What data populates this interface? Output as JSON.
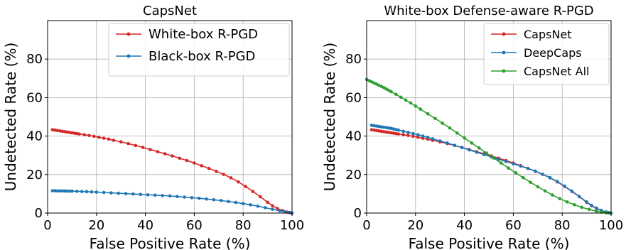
{
  "chart_data": [
    {
      "type": "line",
      "title": "CapsNet",
      "xlabel": "False Positive Rate (%)",
      "ylabel": "Undetected Rate (%)",
      "xlim": [
        0,
        100
      ],
      "ylim": [
        0,
        100
      ],
      "xticks": [
        "0",
        "20",
        "40",
        "60",
        "80",
        "100"
      ],
      "yticks": [
        "0",
        "20",
        "40",
        "60",
        "80"
      ],
      "grid": true,
      "legend_position": "top-right",
      "series": [
        {
          "name": "White-box R-PGD",
          "color": "#d62728",
          "x": [
            2,
            3,
            4,
            5,
            6,
            7,
            8,
            9,
            10,
            11,
            12,
            13,
            15,
            17,
            19,
            21,
            23,
            25,
            27,
            30,
            33,
            36,
            39,
            42,
            45,
            48,
            51,
            54,
            57,
            60,
            63,
            66,
            69,
            72,
            75,
            78,
            81,
            84,
            87,
            90,
            92,
            94,
            96,
            98,
            99,
            100
          ],
          "y": [
            43.3,
            43.1,
            42.9,
            42.7,
            42.5,
            42.3,
            42.1,
            41.9,
            41.7,
            41.5,
            41.3,
            41.1,
            40.7,
            40.3,
            39.9,
            39.4,
            38.9,
            38.4,
            37.8,
            37.0,
            36.1,
            35.1,
            34.1,
            33.0,
            31.9,
            30.8,
            29.7,
            28.5,
            27.3,
            26.0,
            24.6,
            23.2,
            21.7,
            20.1,
            18.3,
            16.2,
            13.8,
            11.2,
            8.5,
            5.6,
            3.8,
            2.4,
            1.3,
            0.5,
            0.2,
            0.0
          ]
        },
        {
          "name": "Black-box R-PGD",
          "color": "#1f77b4",
          "x": [
            2,
            3,
            4,
            5,
            6,
            7,
            8,
            9,
            10,
            12,
            14,
            16,
            18,
            20,
            23,
            26,
            29,
            32,
            35,
            38,
            41,
            44,
            47,
            50,
            53,
            56,
            59,
            62,
            65,
            68,
            71,
            74,
            77,
            80,
            83,
            86,
            89,
            92,
            95,
            97,
            99,
            100
          ],
          "y": [
            11.6,
            11.6,
            11.5,
            11.5,
            11.5,
            11.5,
            11.4,
            11.4,
            11.4,
            11.3,
            11.2,
            11.1,
            11.0,
            10.9,
            10.7,
            10.5,
            10.3,
            10.1,
            9.9,
            9.7,
            9.5,
            9.3,
            9.1,
            8.9,
            8.6,
            8.3,
            8.0,
            7.7,
            7.3,
            6.9,
            6.5,
            6.0,
            5.5,
            4.9,
            4.3,
            3.6,
            2.8,
            2.0,
            1.2,
            0.7,
            0.3,
            0.0
          ]
        }
      ]
    },
    {
      "type": "line",
      "title": "White-box Defense-aware R-PGD",
      "xlabel": "False Positive Rate (%)",
      "ylabel": "Undetected Rate (%)",
      "xlim": [
        0,
        100
      ],
      "ylim": [
        0,
        100
      ],
      "xticks": [
        "0",
        "20",
        "40",
        "60",
        "80",
        "100"
      ],
      "yticks": [
        "0",
        "20",
        "40",
        "60",
        "80"
      ],
      "grid": true,
      "legend_position": "top-right",
      "series": [
        {
          "name": "CapsNet",
          "color": "#d62728",
          "x": [
            2,
            3,
            4,
            5,
            6,
            7,
            8,
            9,
            10,
            11,
            12,
            13,
            15,
            17,
            19,
            21,
            23,
            25,
            27,
            30,
            33,
            36,
            39,
            42,
            45,
            48,
            51,
            54,
            57,
            60,
            63,
            66,
            69,
            72,
            75,
            78,
            81,
            84,
            87,
            90,
            92,
            94,
            96,
            98,
            99,
            100
          ],
          "y": [
            43.3,
            43.1,
            42.9,
            42.7,
            42.5,
            42.3,
            42.1,
            41.9,
            41.7,
            41.5,
            41.3,
            41.1,
            40.7,
            40.3,
            39.9,
            39.4,
            38.9,
            38.4,
            37.8,
            37.0,
            36.1,
            35.1,
            34.1,
            33.0,
            31.9,
            30.8,
            29.7,
            28.5,
            27.3,
            26.0,
            24.6,
            23.2,
            21.7,
            20.1,
            18.3,
            16.2,
            13.8,
            11.2,
            8.5,
            5.6,
            3.8,
            2.4,
            1.3,
            0.5,
            0.2,
            0.0
          ]
        },
        {
          "name": "DeepCaps",
          "color": "#1f77b4",
          "x": [
            2,
            3,
            4,
            5,
            6,
            7,
            8,
            9,
            10,
            11,
            12,
            13,
            15,
            17,
            19,
            21,
            23,
            25,
            27,
            30,
            33,
            36,
            39,
            42,
            45,
            48,
            51,
            54,
            57,
            60,
            63,
            66,
            69,
            72,
            75,
            78,
            81,
            84,
            87,
            90,
            92,
            94,
            96,
            98,
            99,
            100
          ],
          "y": [
            45.6,
            45.4,
            45.2,
            45.0,
            44.8,
            44.6,
            44.4,
            44.2,
            44.0,
            43.7,
            43.4,
            43.1,
            42.5,
            41.9,
            41.3,
            40.7,
            40.0,
            39.3,
            38.6,
            37.5,
            36.4,
            35.2,
            34.0,
            32.8,
            31.6,
            30.4,
            29.2,
            28.0,
            26.8,
            25.6,
            24.4,
            23.2,
            21.8,
            20.2,
            18.4,
            16.4,
            14.0,
            11.4,
            8.6,
            5.8,
            4.0,
            2.6,
            1.4,
            0.6,
            0.2,
            0.0
          ]
        },
        {
          "name": "CapsNet All",
          "color": "#2ca02c",
          "x": [
            0,
            1,
            2,
            3,
            4,
            5,
            6,
            7,
            8,
            9,
            10,
            12,
            14,
            16,
            18,
            20,
            22,
            25,
            28,
            31,
            34,
            37,
            40,
            43,
            46,
            49,
            52,
            55,
            58,
            61,
            64,
            67,
            70,
            73,
            76,
            79,
            82,
            85,
            88,
            91,
            94,
            96,
            98,
            100
          ],
          "y": [
            69.4,
            68.8,
            68.2,
            67.6,
            67.0,
            66.4,
            65.8,
            65.2,
            64.5,
            63.8,
            63.1,
            61.7,
            60.2,
            58.7,
            57.2,
            55.6,
            54.0,
            51.6,
            49.2,
            46.7,
            44.2,
            41.6,
            39.0,
            36.4,
            33.8,
            31.2,
            28.6,
            26.0,
            23.4,
            20.9,
            18.4,
            16.0,
            13.7,
            11.5,
            9.4,
            7.5,
            5.8,
            4.3,
            3.0,
            1.9,
            1.0,
            0.5,
            0.2,
            0.0
          ]
        }
      ]
    }
  ]
}
